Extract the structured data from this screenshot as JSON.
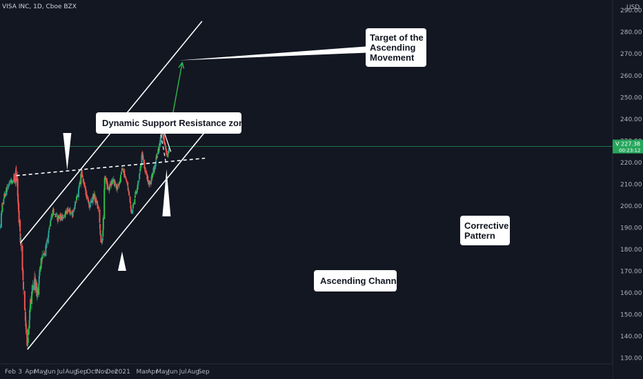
{
  "header": {
    "symbol_label": "VISA INC, 1D, Cboe BZX",
    "currency": "USD"
  },
  "price_tag": {
    "symbol": "V",
    "price": "227.38",
    "countdown": "00:23:12"
  },
  "colors": {
    "background": "#131722",
    "up": "#26a69a",
    "up_bright": "#2ebd4a",
    "down": "#ef5350",
    "last_price": "#26a65b",
    "target_arrow": "#2ebd4a"
  },
  "chart_data": {
    "type": "candlestick",
    "title": "",
    "xlabel": "",
    "ylabel": "",
    "ylim": [
      128,
      291
    ],
    "yticks": [
      130,
      140,
      150,
      160,
      170,
      180,
      190,
      200,
      210,
      220,
      230,
      240,
      250,
      260,
      270,
      280,
      290
    ],
    "x_tick_labels": [
      "Feb",
      "3",
      "Apr",
      "May",
      "Jun",
      "Jul",
      "Aug",
      "Sep",
      "Oct",
      "Nov",
      "Dec",
      "2021",
      "Mar",
      "Apr",
      "May",
      "Jun",
      "Jul",
      "Aug",
      "Sep"
    ],
    "x_tick_dates": [
      "2020-02-01",
      "2020-03-01",
      "2020-04-01",
      "2020-05-01",
      "2020-06-01",
      "2020-07-01",
      "2020-08-01",
      "2020-09-01",
      "2020-10-01",
      "2020-11-01",
      "2020-12-01",
      "2021-01-01",
      "2021-03-01",
      "2021-04-01",
      "2021-05-01",
      "2021-06-01",
      "2021-07-01",
      "2021-08-01",
      "2021-09-01"
    ],
    "grid": false,
    "last_price": 227.38,
    "close_path": [
      [
        "2020-01-01",
        190
      ],
      [
        "2020-01-10",
        203
      ],
      [
        "2020-01-22",
        208
      ],
      [
        "2020-02-05",
        212
      ],
      [
        "2020-02-19",
        214
      ],
      [
        "2020-02-24",
        202
      ],
      [
        "2020-03-02",
        185
      ],
      [
        "2020-03-09",
        170
      ],
      [
        "2020-03-16",
        150
      ],
      [
        "2020-03-23",
        136
      ],
      [
        "2020-03-30",
        152
      ],
      [
        "2020-04-06",
        163
      ],
      [
        "2020-04-15",
        164
      ],
      [
        "2020-04-22",
        160
      ],
      [
        "2020-05-01",
        174
      ],
      [
        "2020-05-14",
        178
      ],
      [
        "2020-05-28",
        190
      ],
      [
        "2020-06-08",
        198
      ],
      [
        "2020-06-22",
        194
      ],
      [
        "2020-07-06",
        195
      ],
      [
        "2020-07-22",
        198
      ],
      [
        "2020-08-05",
        196
      ],
      [
        "2020-08-20",
        205
      ],
      [
        "2020-09-01",
        216
      ],
      [
        "2020-09-10",
        208
      ],
      [
        "2020-09-24",
        200
      ],
      [
        "2020-10-08",
        205
      ],
      [
        "2020-10-22",
        198
      ],
      [
        "2020-10-30",
        182
      ],
      [
        "2020-11-03",
        184
      ],
      [
        "2020-11-09",
        214
      ],
      [
        "2020-11-20",
        207
      ],
      [
        "2020-12-04",
        212
      ],
      [
        "2020-12-18",
        208
      ],
      [
        "2020-12-31",
        217
      ],
      [
        "2021-01-14",
        212
      ],
      [
        "2021-01-29",
        196
      ],
      [
        "2021-02-08",
        205
      ],
      [
        "2021-02-19",
        212
      ],
      [
        "2021-03-01",
        224
      ],
      [
        "2021-03-11",
        215
      ],
      [
        "2021-03-24",
        210
      ],
      [
        "2021-04-08",
        219
      ],
      [
        "2021-04-22",
        228
      ],
      [
        "2021-04-30",
        235
      ],
      [
        "2021-05-07",
        229
      ],
      [
        "2021-05-14",
        222
      ],
      [
        "2021-05-21",
        227
      ]
    ],
    "lines": [
      {
        "name": "channel-upper",
        "style": "solid",
        "from": [
          "2020-03-02",
          183
        ],
        "to": [
          "2021-08-27",
          285
        ]
      },
      {
        "name": "channel-lower",
        "style": "solid",
        "from": [
          "2020-03-23",
          134
        ],
        "to": [
          "2021-09-15",
          236
        ]
      },
      {
        "name": "support-resistance",
        "style": "dashed",
        "from": [
          "2020-02-19",
          214
        ],
        "to": [
          "2021-09-05",
          222
        ]
      },
      {
        "name": "pattern-upper",
        "style": "solid",
        "from": [
          "2021-04-29",
          237
        ],
        "to": [
          "2021-05-26",
          225
        ]
      },
      {
        "name": "pattern-lower",
        "style": "dashed",
        "from": [
          "2021-04-26",
          233
        ],
        "to": [
          "2021-05-11",
          220
        ]
      },
      {
        "name": "breakout-level",
        "style": "solid",
        "from": [
          "2021-05-10",
          235
        ],
        "to": [
          "2021-06-15",
          235
        ]
      }
    ],
    "target_arrow": {
      "from": [
        "2021-05-24",
        236
      ],
      "to": [
        "2021-06-29",
        266
      ]
    },
    "annotations": [
      {
        "text": "Dynamic Support Resistance zone",
        "pointer": [
          "2020-07-20",
          216.5
        ]
      },
      {
        "text": "Target of the\nAscending\nMovement",
        "pointer": [
          "2021-06-18",
          267
        ]
      },
      {
        "text": "Ascending Channel",
        "pointer": [
          "2020-12-31",
          179
        ]
      },
      {
        "text": "Corrective\nPattern",
        "pointer": [
          "2021-05-13",
          217
        ]
      }
    ]
  }
}
